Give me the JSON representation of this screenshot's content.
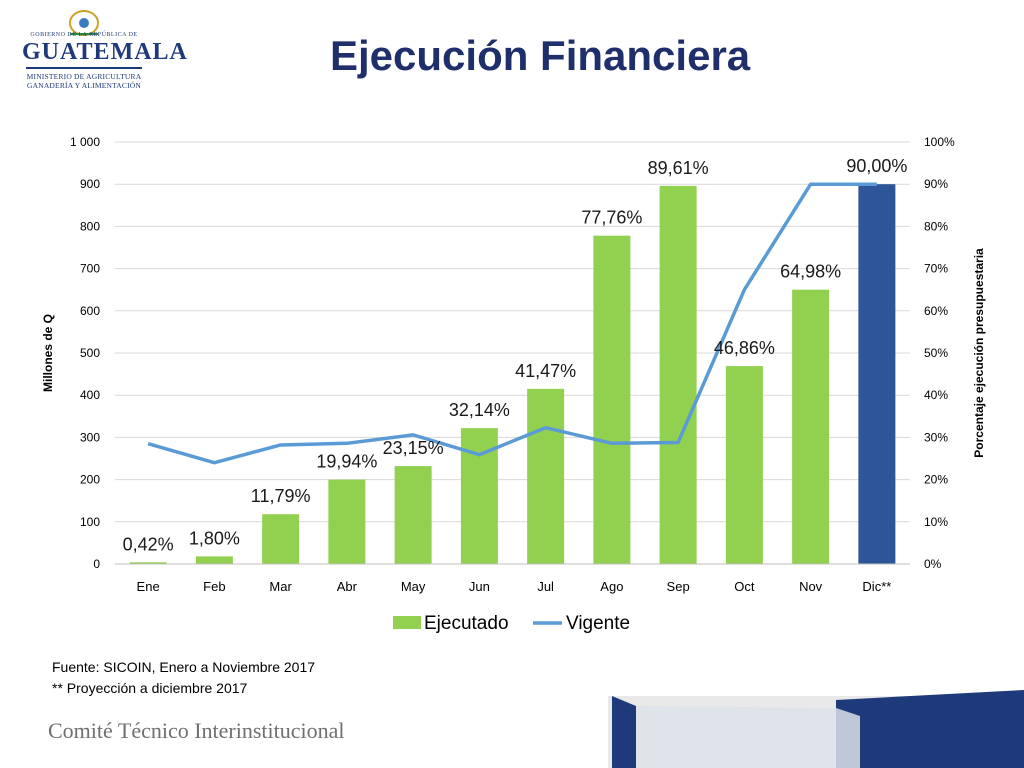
{
  "header": {
    "logo": {
      "government_line": "GOBIERNO DE LA REPÚBLICA DE",
      "country": "GUATEMALA",
      "ministry_line1": "MINISTERIO DE AGRICULTURA",
      "ministry_line2": "GANADERÍA Y ALIMENTACIÓN"
    },
    "title": "Ejecución Financiera"
  },
  "chart_data": {
    "type": "bar",
    "title": "",
    "categories": [
      "Ene",
      "Feb",
      "Mar",
      "Abr",
      "May",
      "Jun",
      "Jul",
      "Ago",
      "Sep",
      "Oct",
      "Nov",
      "Dic**"
    ],
    "ylabel": "Millones de Q",
    "y2label": "Porcentaje ejecución presupuestaria",
    "ylim": [
      0,
      1000
    ],
    "y2lim": [
      0,
      100
    ],
    "yticks": [
      "0",
      "100",
      "200",
      "300",
      "400",
      "500",
      "600",
      "700",
      "800",
      "900",
      "1 000"
    ],
    "y2ticks": [
      "0%",
      "10%",
      "20%",
      "30%",
      "40%",
      "50%",
      "60%",
      "70%",
      "80%",
      "90%",
      "100%"
    ],
    "grid": true,
    "legend_position": "bottom",
    "series": [
      {
        "name": "Ejecutado",
        "type": "bar",
        "axis": "left",
        "color": "#92d050",
        "values": [
          4,
          18,
          118,
          200,
          232,
          322,
          415,
          778,
          896,
          469,
          650,
          900
        ],
        "labels": [
          "0,42%",
          "1,80%",
          "11,79%",
          "19,94%",
          "23,15%",
          "32,14%",
          "41,47%",
          "77,76%",
          "89,61%",
          "46,86%",
          "64,98%",
          "90,00%"
        ],
        "highlight": {
          "index": 11,
          "color": "#2e5597"
        }
      },
      {
        "name": "Vigente",
        "type": "line",
        "axis": "right",
        "color": "#5b9bd5",
        "values": [
          28.5,
          24,
          28.2,
          28.6,
          30.6,
          25.9,
          32.3,
          28.6,
          28.8,
          65,
          90,
          90
        ]
      }
    ]
  },
  "notes": {
    "source": "Fuente: SICOIN, Enero a  Noviembre 2017",
    "projection": "** Proyección a diciembre 2017"
  },
  "footer": {
    "text": "Comité Técnico Interinstitucional"
  }
}
